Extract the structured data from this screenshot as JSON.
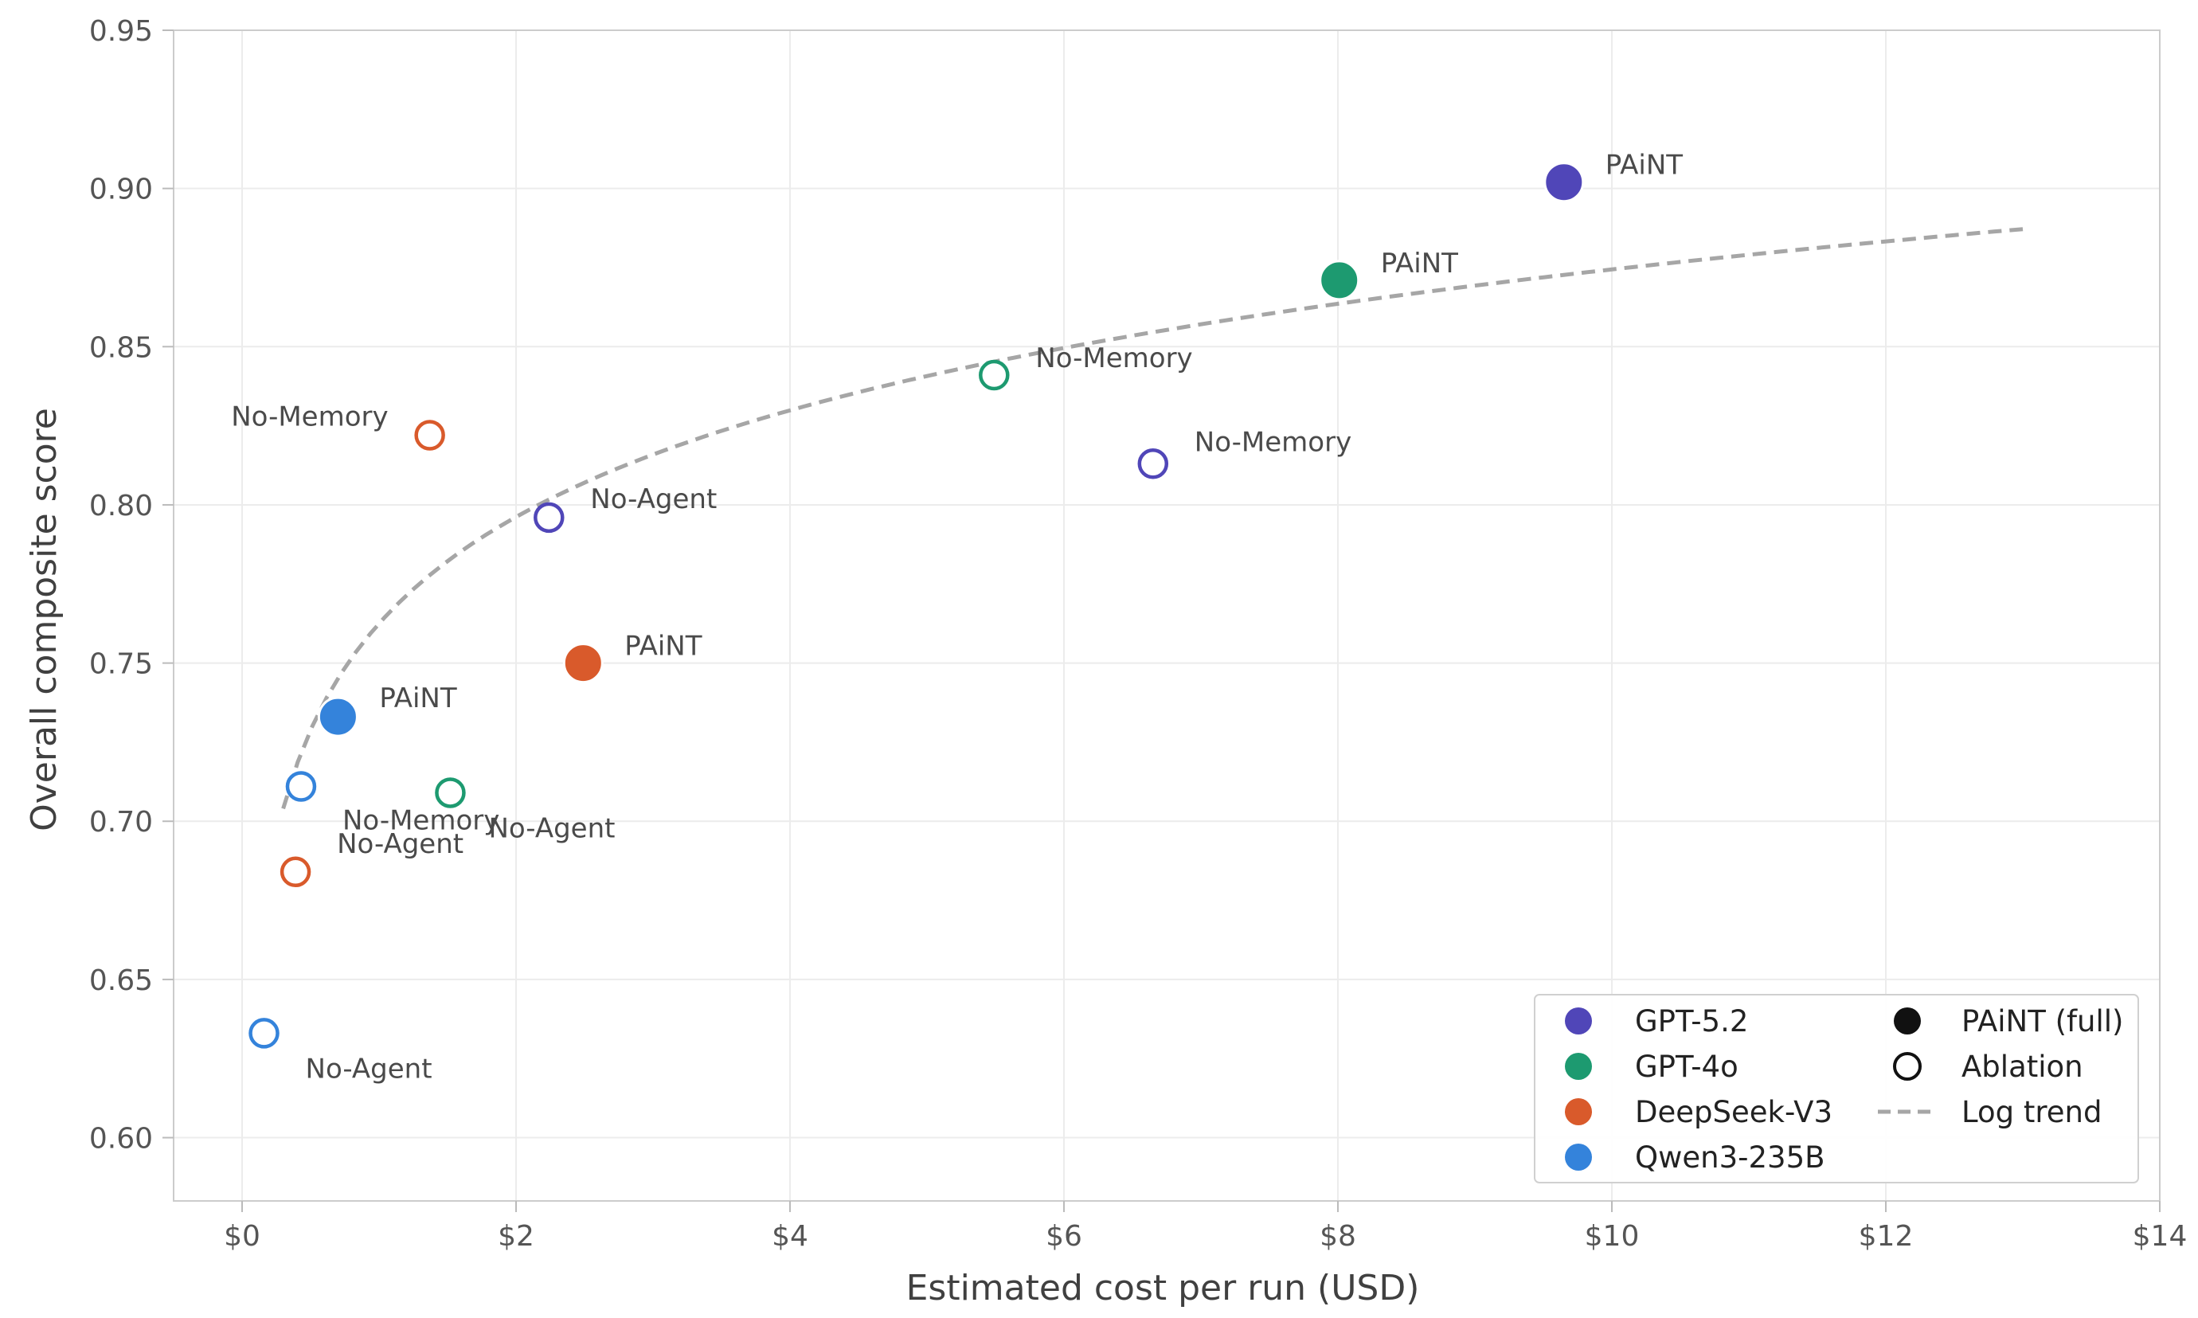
{
  "chart_data": {
    "type": "scatter",
    "title": "",
    "xlabel": "Estimated cost per run (USD)",
    "ylabel": "Overall composite score",
    "xlim": [
      -0.5,
      14
    ],
    "ylim": [
      0.58,
      0.95
    ],
    "x_ticks": [
      0,
      2,
      4,
      6,
      8,
      10,
      12,
      14
    ],
    "x_tick_labels": [
      "$0",
      "$2",
      "$4",
      "$6",
      "$8",
      "$10",
      "$12",
      "$14"
    ],
    "y_ticks": [
      0.6,
      0.65,
      0.7,
      0.75,
      0.8,
      0.85,
      0.9,
      0.95
    ],
    "y_tick_labels": [
      "0.60",
      "0.65",
      "0.70",
      "0.75",
      "0.80",
      "0.85",
      "0.90",
      "0.95"
    ],
    "grid": true,
    "legend_position": "lower-right",
    "series": [
      {
        "name": "GPT-5.2",
        "color": "#5046b8",
        "points": [
          {
            "x": 9.65,
            "y": 0.902,
            "variant": "full",
            "label": "PAiNT"
          },
          {
            "x": 6.65,
            "y": 0.813,
            "variant": "ablation",
            "label": "No-Memory"
          },
          {
            "x": 2.24,
            "y": 0.796,
            "variant": "ablation",
            "label": "No-Agent"
          }
        ]
      },
      {
        "name": "GPT-4o",
        "color": "#1d9a70",
        "points": [
          {
            "x": 8.01,
            "y": 0.871,
            "variant": "full",
            "label": "PAiNT"
          },
          {
            "x": 5.49,
            "y": 0.841,
            "variant": "ablation",
            "label": "No-Memory"
          },
          {
            "x": 1.52,
            "y": 0.709,
            "variant": "ablation",
            "label": "No-Agent"
          }
        ]
      },
      {
        "name": "DeepSeek-V3",
        "color": "#d95a2b",
        "points": [
          {
            "x": 2.49,
            "y": 0.75,
            "variant": "full",
            "label": "PAiNT"
          },
          {
            "x": 1.37,
            "y": 0.822,
            "variant": "ablation",
            "label": "No-Memory"
          },
          {
            "x": 0.39,
            "y": 0.684,
            "variant": "ablation",
            "label": "No-Agent"
          }
        ]
      },
      {
        "name": "Qwen3-235B",
        "color": "#3483db",
        "points": [
          {
            "x": 0.7,
            "y": 0.733,
            "variant": "full",
            "label": "PAiNT"
          },
          {
            "x": 0.43,
            "y": 0.711,
            "variant": "ablation",
            "label": "No-Memory"
          },
          {
            "x": 0.16,
            "y": 0.633,
            "variant": "ablation",
            "label": "No-Agent"
          }
        ]
      }
    ],
    "trend": {
      "name": "Log trend",
      "color": "#a6a6a6",
      "style": "dashed",
      "x_range": [
        0.3,
        13.0
      ],
      "a": 0.7625,
      "b": 0.0486
    },
    "legend": {
      "models": [
        "GPT-5.2",
        "GPT-4o",
        "DeepSeek-V3",
        "Qwen3-235B"
      ],
      "markers": [
        "PAiNT (full)",
        "Ablation"
      ],
      "trend": "Log trend"
    }
  }
}
